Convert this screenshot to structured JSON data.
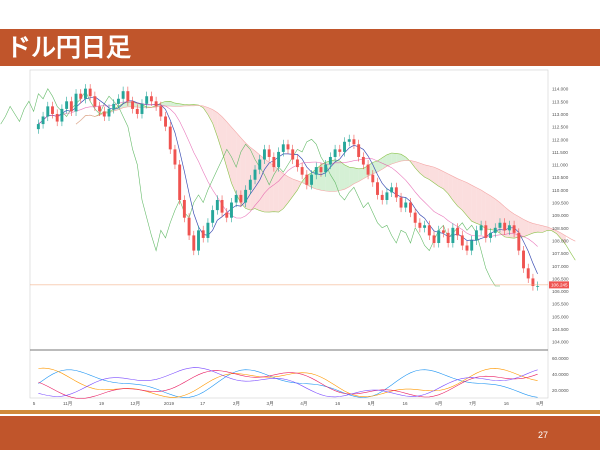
{
  "slide": {
    "title": "ドル円日足",
    "page_number": "27"
  },
  "colors": {
    "title_bar": "#c0552b",
    "bullish": "#26a69a",
    "bearish": "#ef5350",
    "price_label": "#ef5350",
    "kumo_bullish": "#b9e6b9",
    "kumo_bearish": "#f8c8c8",
    "conversion_line": "#3f51b5",
    "base_line": "#e040a0",
    "lagging_span": "#66bb6a",
    "span_a": "#8bc34a",
    "span_b": "#f4a6a6",
    "osc_1": "#2196f3",
    "osc_2": "#ff9800",
    "osc_3": "#e91e63",
    "osc_4": "#7c4dff"
  },
  "chart_data": {
    "type": "candlestick",
    "price_axis": {
      "ticks": [
        "114.000",
        "113.500",
        "113.000",
        "112.500",
        "112.000",
        "111.500",
        "111.000",
        "110.500",
        "110.000",
        "109.500",
        "109.000",
        "108.500",
        "108.000",
        "107.500",
        "107.000",
        "106.500",
        "106.000",
        "105.500",
        "105.000",
        "104.500",
        "104.000"
      ],
      "range": [
        103.75,
        114.5
      ]
    },
    "last_price": "106.245",
    "date_axis": [
      "5",
      "11月",
      "19",
      "12月",
      "2019",
      "17",
      "2月",
      "3月",
      "4月",
      "16",
      "5月",
      "16",
      "6月",
      "7月",
      "16",
      "8月"
    ],
    "oscillator": {
      "axis_ticks": [
        "60.0000",
        "40.0000",
        "20.0000"
      ],
      "range": [
        10,
        65
      ]
    },
    "closes": [
      112.6,
      112.9,
      113.3,
      113.0,
      112.7,
      113.2,
      113.5,
      113.1,
      113.8,
      113.6,
      114.0,
      113.7,
      113.3,
      113.1,
      112.9,
      113.2,
      113.4,
      113.6,
      113.9,
      113.5,
      113.2,
      113.0,
      113.4,
      113.7,
      113.5,
      113.3,
      112.9,
      112.5,
      111.6,
      111.0,
      109.6,
      108.9,
      108.2,
      107.6,
      108.4,
      108.1,
      108.7,
      109.2,
      109.6,
      109.1,
      108.9,
      109.5,
      109.8,
      109.5,
      110.0,
      110.4,
      110.8,
      111.2,
      111.6,
      111.3,
      110.9,
      111.5,
      111.8,
      111.6,
      111.2,
      110.9,
      110.6,
      110.2,
      110.6,
      110.9,
      110.7,
      111.0,
      111.3,
      111.6,
      111.5,
      111.9,
      112.0,
      111.8,
      111.3,
      111.0,
      110.6,
      110.3,
      109.8,
      109.6,
      109.9,
      110.1,
      109.7,
      109.3,
      109.5,
      109.1,
      108.7,
      108.5,
      108.6,
      108.2,
      107.9,
      108.4,
      108.3,
      107.9,
      108.5,
      108.2,
      107.8,
      107.6,
      108.0,
      108.4,
      108.6,
      108.1,
      108.3,
      108.5,
      108.7,
      108.4,
      108.6,
      108.3,
      107.6,
      106.9,
      106.5,
      106.2,
      106.2
    ]
  }
}
